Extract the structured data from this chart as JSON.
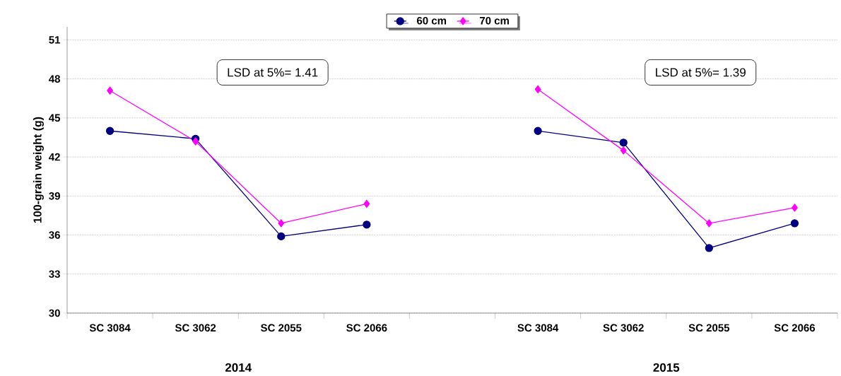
{
  "chart_data": {
    "type": "line",
    "ylabel": "100-grain weight (g)",
    "categories": [
      "SC 3084",
      "SC 3062",
      "SC 2055",
      "SC 2066",
      null,
      "SC 3084",
      "SC 3062",
      "SC 2055",
      "SC 2066"
    ],
    "series": [
      {
        "name": "60 cm",
        "color": "#000080",
        "marker": "circle",
        "values": [
          44.0,
          43.4,
          35.9,
          36.8,
          null,
          44.0,
          43.1,
          35.0,
          36.9
        ]
      },
      {
        "name": "70 cm",
        "color": "#ff00ff",
        "marker": "diamond",
        "values": [
          47.1,
          43.2,
          36.9,
          38.4,
          null,
          47.2,
          42.5,
          36.9,
          38.1
        ]
      }
    ],
    "ylim": [
      30,
      52
    ],
    "yticks": [
      30,
      33,
      36,
      39,
      42,
      45,
      48,
      51
    ],
    "grid": "y",
    "legend": "top",
    "line_style": "solid",
    "annotations": [
      "LSD at 5%= 1.41",
      "LSD at 5%= 1.39",
      "2014",
      "2015"
    ]
  }
}
